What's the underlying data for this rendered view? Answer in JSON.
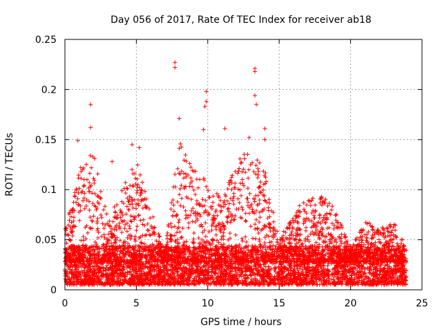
{
  "chart_data": {
    "type": "scatter",
    "title": "Day 056 of 2017, Rate Of TEC Index for receiver ab18",
    "xlabel": "GPS time / hours",
    "ylabel": "ROTI / TECUs",
    "xlim": [
      0,
      25
    ],
    "ylim": [
      0,
      0.25
    ],
    "xticks": [
      0,
      5,
      10,
      15,
      20,
      25
    ],
    "xtick_labels": [
      "0",
      "5",
      "10",
      "15",
      "20",
      "25"
    ],
    "yticks": [
      0,
      0.05,
      0.1,
      0.15,
      0.2,
      0.25
    ],
    "ytick_labels": [
      "0",
      "0.05",
      "0.1",
      "0.15",
      "0.2",
      "0.25"
    ],
    "grid": true,
    "marker": "+",
    "series_color": "#ff0000",
    "data_x_range_hours": [
      0,
      23.9
    ],
    "notable_points": [
      {
        "x": 1.8,
        "y": 0.185
      },
      {
        "x": 1.8,
        "y": 0.162
      },
      {
        "x": 7.7,
        "y": 0.227
      },
      {
        "x": 7.7,
        "y": 0.222
      },
      {
        "x": 8.0,
        "y": 0.171
      },
      {
        "x": 9.9,
        "y": 0.198
      },
      {
        "x": 9.9,
        "y": 0.188
      },
      {
        "x": 9.8,
        "y": 0.183
      },
      {
        "x": 13.3,
        "y": 0.221
      },
      {
        "x": 13.3,
        "y": 0.218
      },
      {
        "x": 13.3,
        "y": 0.194
      },
      {
        "x": 13.4,
        "y": 0.185
      },
      {
        "x": 12.9,
        "y": 0.152
      },
      {
        "x": 11.2,
        "y": 0.161
      },
      {
        "x": 14.0,
        "y": 0.161
      },
      {
        "x": 14.0,
        "y": 0.15
      },
      {
        "x": 0.9,
        "y": 0.149
      },
      {
        "x": 4.7,
        "y": 0.145
      },
      {
        "x": 5.2,
        "y": 0.142
      },
      {
        "x": 9.7,
        "y": 0.16
      },
      {
        "x": 3.3,
        "y": 0.128
      }
    ],
    "envelope": {
      "description": "upper edge of dense point cloud (ROTI, TECUs) per hour",
      "hours": [
        0,
        1,
        2,
        3,
        4,
        5,
        6,
        7,
        8,
        9,
        10,
        11,
        12,
        13,
        14,
        15,
        16,
        17,
        18,
        19,
        20,
        21,
        22,
        23,
        24
      ],
      "upper": [
        0.06,
        0.12,
        0.14,
        0.07,
        0.1,
        0.13,
        0.08,
        0.04,
        0.15,
        0.12,
        0.11,
        0.09,
        0.13,
        0.14,
        0.12,
        0.05,
        0.08,
        0.09,
        0.1,
        0.08,
        0.04,
        0.07,
        0.06,
        0.07,
        0.04
      ],
      "dense_band": [
        0.005,
        0.04
      ]
    }
  }
}
